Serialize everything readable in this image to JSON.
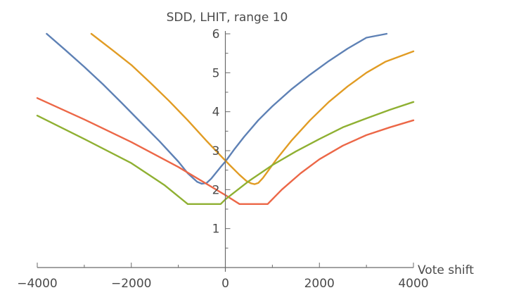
{
  "chart_data": {
    "type": "line",
    "title": "SDD, LHIT, range 10",
    "xlabel": "Vote shift",
    "ylabel": "",
    "xlim": [
      -4000,
      4000
    ],
    "ylim": [
      0,
      6
    ],
    "x_ticks": [
      -4000,
      -3000,
      -2000,
      -1000,
      0,
      1000,
      2000,
      3000,
      4000
    ],
    "x_tick_labels": [
      "−4000",
      "−2000",
      "0",
      "2000",
      "4000"
    ],
    "x_tick_label_values": [
      -4000,
      -2000,
      0,
      2000,
      4000
    ],
    "y_ticks": [
      1,
      2,
      3,
      4,
      5,
      6
    ],
    "y_minor_ticks": [
      0.5,
      1.5,
      2.5,
      3.5,
      4.5,
      5.5
    ],
    "y_tick_labels": [
      "1",
      "2",
      "3",
      "4",
      "5",
      "6"
    ],
    "grid": false,
    "series": [
      {
        "color": "#5e81b5",
        "x": [
          -3800,
          -3400,
          -3000,
          -2600,
          -2200,
          -1800,
          -1400,
          -1000,
          -800,
          -600,
          -500,
          -400,
          -300,
          -200,
          -100,
          0,
          200,
          400,
          700,
          1000,
          1400,
          1800,
          2200,
          2600,
          3000,
          3430
        ],
        "y": [
          6.0,
          5.58,
          5.15,
          4.7,
          4.22,
          3.73,
          3.24,
          2.72,
          2.42,
          2.2,
          2.15,
          2.17,
          2.28,
          2.43,
          2.58,
          2.72,
          3.05,
          3.36,
          3.78,
          4.14,
          4.57,
          4.95,
          5.3,
          5.62,
          5.9,
          6.0
        ]
      },
      {
        "color": "#e19c24",
        "x": [
          -2850,
          -2400,
          -2000,
          -1600,
          -1200,
          -800,
          -400,
          -100,
          100,
          300,
          450,
          550,
          620,
          700,
          800,
          950,
          1100,
          1400,
          1800,
          2200,
          2600,
          3000,
          3400,
          4000
        ],
        "y": [
          6.0,
          5.58,
          5.2,
          4.75,
          4.28,
          3.78,
          3.25,
          2.87,
          2.62,
          2.38,
          2.22,
          2.16,
          2.14,
          2.17,
          2.3,
          2.55,
          2.8,
          3.25,
          3.78,
          4.25,
          4.65,
          5.0,
          5.28,
          5.55
        ]
      },
      {
        "color": "#ec6747",
        "x": [
          -4000,
          -3000,
          -2000,
          -1000,
          -500,
          0,
          300,
          900,
          1200,
          1600,
          2000,
          2500,
          3000,
          3500,
          4000
        ],
        "y": [
          4.35,
          3.8,
          3.22,
          2.58,
          2.22,
          1.86,
          1.63,
          1.63,
          2.0,
          2.42,
          2.78,
          3.13,
          3.4,
          3.6,
          3.78
        ]
      },
      {
        "color": "#8fb032",
        "x": [
          -4000,
          -3000,
          -2000,
          -1300,
          -800,
          -600,
          -100,
          0,
          500,
          1000,
          1500,
          2000,
          2500,
          3000,
          3500,
          4000
        ],
        "y": [
          3.9,
          3.3,
          2.68,
          2.12,
          1.63,
          1.63,
          1.63,
          1.75,
          2.22,
          2.63,
          2.98,
          3.3,
          3.6,
          3.83,
          4.05,
          4.25
        ]
      }
    ]
  }
}
